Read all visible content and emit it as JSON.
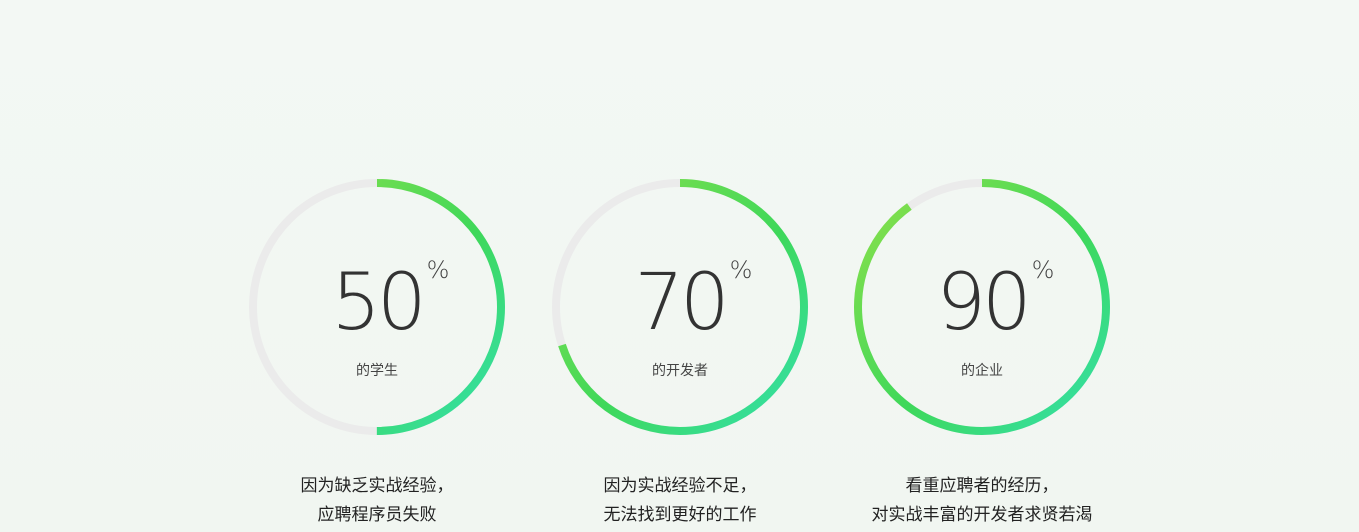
{
  "stats": [
    {
      "value": "50",
      "percent_sign": "%",
      "level": 0.5,
      "subject": "的学生",
      "line1": "因为缺乏实战经验，",
      "line2": "应聘程序员失败"
    },
    {
      "value": "70",
      "percent_sign": "%",
      "level": 0.7,
      "subject": "的开发者",
      "line1": "因为实战经验不足，",
      "line2": "无法找到更好的工作"
    },
    {
      "value": "90",
      "percent_sign": "%",
      "level": 0.9,
      "subject": "的企业",
      "line1": "看重应聘者的经历，",
      "line2": "对实战丰富的开发者求贤若渴"
    }
  ],
  "colors": {
    "track": "#ebebeb",
    "gradient_start": "#8fe04a",
    "gradient_mid": "#3ed85a",
    "gradient_end": "#33e0b0"
  }
}
